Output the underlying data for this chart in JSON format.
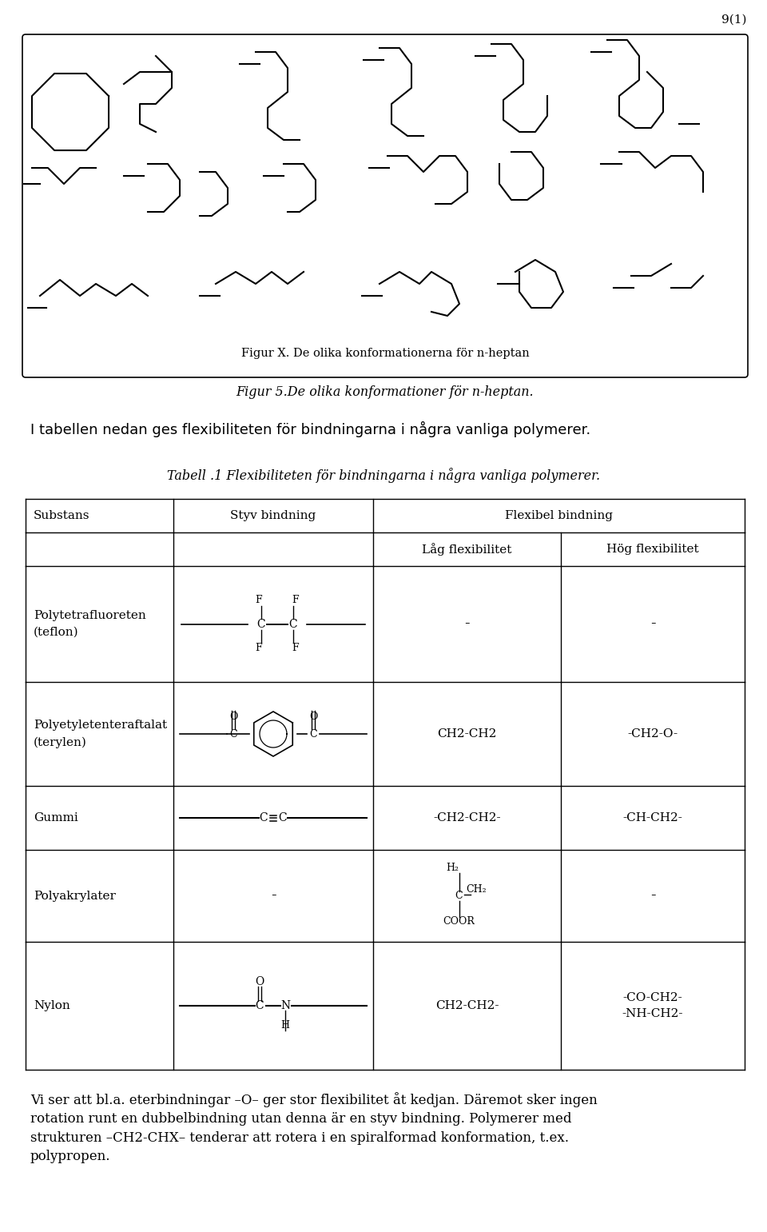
{
  "page_number": "9(1)",
  "fig_caption_inside": "Figur X. De olika konformationerna för n-heptan",
  "fig_caption_outside": "Figur 5.De olika konformationer för n-heptan.",
  "intro_text": "I tabellen nedan ges flexibiliteten för bindningarna i några vanliga polymerer.",
  "table_caption": "Tabell .1 Flexibiliteten för bindningarna i några vanliga polymerer.",
  "col_headers": [
    "Substans",
    "Styv bindning",
    "Flexibel bindning"
  ],
  "sub_headers": [
    "Låg flexibilitet",
    "Hög flexibilitet"
  ],
  "rows": [
    {
      "name": "Polytetrafluoreten\n(teflon)",
      "low_flex": "-",
      "high_flex": "-"
    },
    {
      "name": "Polyetyletenteraftalat\n(terylen)",
      "low_flex": "CH2-CH2",
      "high_flex": "-CH2-O-"
    },
    {
      "name": "Gummi",
      "low_flex": "-CH2-CH2-",
      "high_flex": "-CH-CH2-"
    },
    {
      "name": "Polyakrylater",
      "low_flex": "-",
      "high_flex": "-"
    },
    {
      "name": "Nylon",
      "low_flex": "CH2-CH2-",
      "high_flex": "-CO-CH2-\n-NH-CH2-"
    }
  ],
  "footer_text": "Vi ser att bl.a. eterbindningar –O– ger stor flexibilitet åt kedjan. Däremot sker ingen\nrotation runt en dubbelbindning utan denna är en styv bindning. Polymerer med\nstrukturen –CH2-CHX– tenderar att rotera i en spiralformad konformation, t.ex.\npolypropen.",
  "bg_color": "#ffffff",
  "text_color": "#000000"
}
